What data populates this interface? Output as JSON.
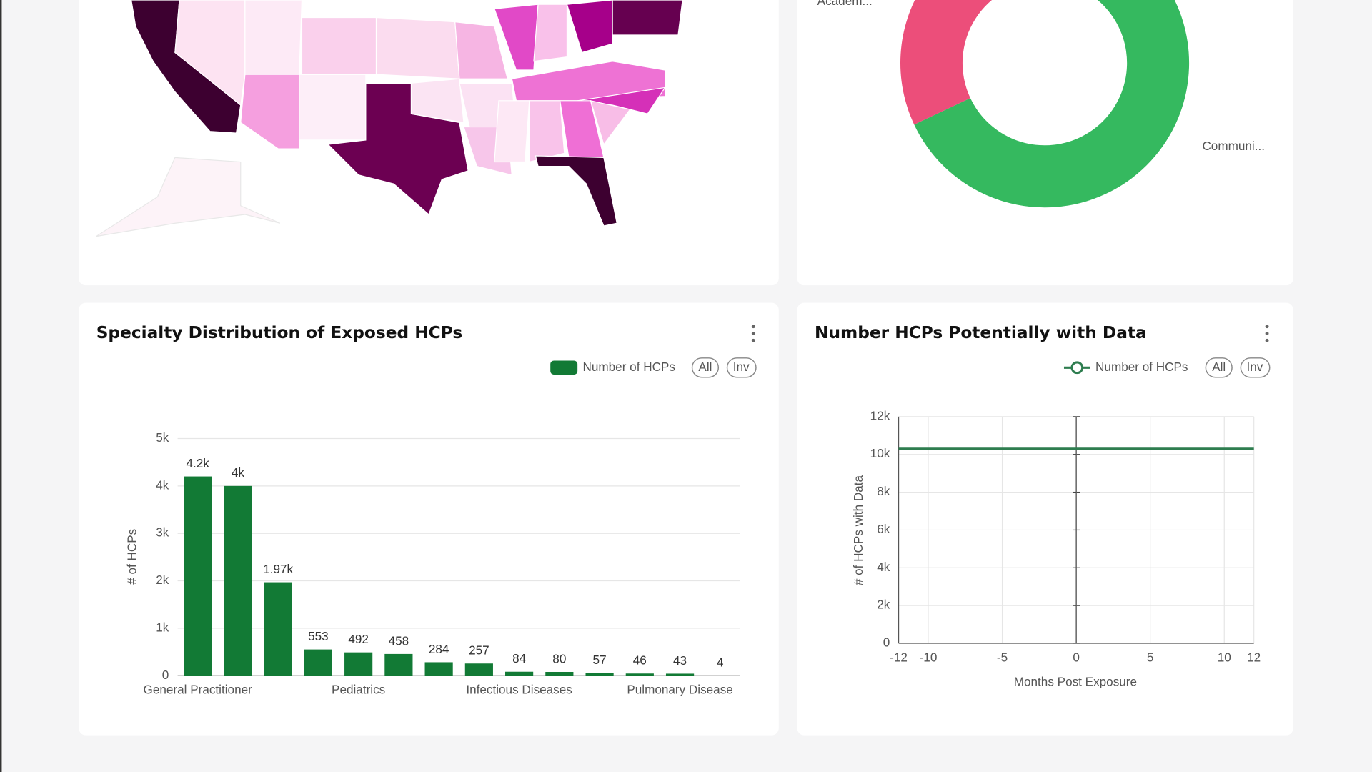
{
  "chart_data": [
    {
      "type": "pie",
      "categories": [
        "Communi...",
        "Academ..."
      ],
      "values": [
        68,
        32
      ],
      "colors": [
        "#35b95f",
        "#ec4e7a"
      ]
    },
    {
      "type": "bar",
      "title": "Specialty Distribution of Exposed HCPs",
      "legend": "Number of HCPs",
      "buttons": [
        "All",
        "Inv"
      ],
      "ylabel": "# of HCPs",
      "categories": [
        "General Practitioner",
        null,
        null,
        null,
        "Pediatrics",
        null,
        null,
        null,
        "Infectious Diseases",
        null,
        null,
        null,
        "Pulmonary Disease",
        null
      ],
      "values": [
        4200,
        4000,
        1970,
        553,
        492,
        458,
        284,
        257,
        84,
        80,
        57,
        46,
        43,
        4
      ],
      "value_labels": [
        "4.2k",
        "4k",
        "1.97k",
        "553",
        "492",
        "458",
        "284",
        "257",
        "84",
        "80",
        "57",
        "46",
        "43",
        "4"
      ],
      "color": "#127a35",
      "ylim": [
        0,
        5000
      ],
      "yticks": [
        0,
        {
          "value": 1000,
          "label": "1k"
        },
        {
          "value": 2000,
          "label": "2k"
        },
        {
          "value": 3000,
          "label": "3k"
        },
        {
          "value": 4000,
          "label": "4k"
        },
        {
          "value": 5000,
          "label": "5k"
        }
      ],
      "grid": true
    },
    {
      "type": "line",
      "title": "Number HCPs Potentially with Data",
      "legend": "Number of HCPs",
      "buttons": [
        "All",
        "Inv"
      ],
      "xlabel": "Months Post Exposure",
      "ylabel": "# of HCPs with Data",
      "x": [
        -12,
        -11,
        -10,
        -9,
        -8,
        -7,
        -6,
        -5,
        -4,
        -3,
        -2,
        -1,
        0,
        1,
        2,
        3,
        4,
        5,
        6,
        7,
        8,
        9,
        10,
        11,
        12
      ],
      "values": [
        10300,
        10300,
        10300,
        10300,
        10300,
        10300,
        10300,
        10300,
        10300,
        10300,
        10300,
        10300,
        10300,
        10300,
        10300,
        10300,
        10300,
        10300,
        10300,
        10300,
        10300,
        10300,
        10300,
        10300,
        10300
      ],
      "color": "#2e7d4f",
      "xlim": [
        -12,
        12
      ],
      "xticks": [
        -12,
        -10,
        -5,
        0,
        5,
        10,
        12
      ],
      "ylim": [
        0,
        12000
      ],
      "yticks": [
        0,
        {
          "value": 2000,
          "label": "2k"
        },
        {
          "value": 4000,
          "label": "4k"
        },
        {
          "value": 6000,
          "label": "6k"
        },
        {
          "value": 8000,
          "label": "8k"
        },
        {
          "value": 10000,
          "label": "10k"
        },
        {
          "value": 12000,
          "label": "12k"
        }
      ],
      "grid": true
    }
  ]
}
